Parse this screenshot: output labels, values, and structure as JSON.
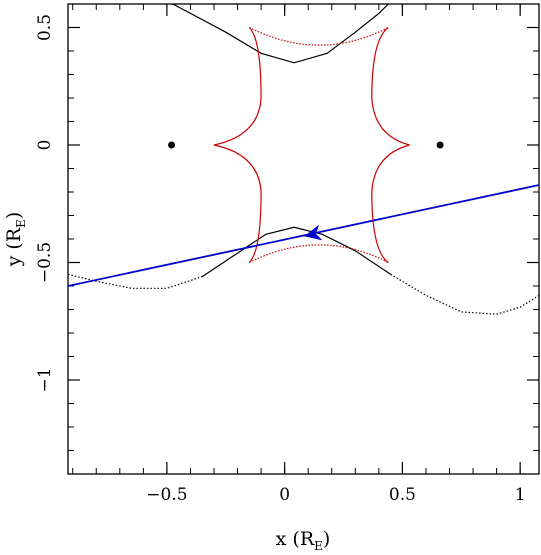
{
  "chart_data": {
    "type": "line",
    "title": "",
    "xlabel": {
      "main": "x (R",
      "sub": "E",
      "close": ")"
    },
    "ylabel": {
      "main": "y (R",
      "sub": "E",
      "close": ")"
    },
    "xlim": [
      -0.92,
      1.08
    ],
    "ylim": [
      -1.4,
      0.6
    ],
    "xticks_major": [
      -0.5,
      0,
      0.5,
      1
    ],
    "xtick_labels": [
      "−0.5",
      "0",
      "0.5",
      "1"
    ],
    "yticks_major": [
      0.5,
      0,
      -0.5,
      -1
    ],
    "ytick_labels": [
      "0.5",
      "0",
      "−0.5",
      "−1"
    ],
    "minor_tick_step": 0.1,
    "grid": false,
    "lenses": [
      {
        "x": -0.48,
        "y": 0.0
      },
      {
        "x": 0.66,
        "y": 0.0
      }
    ],
    "caustic": {
      "color": "#cc0000",
      "cusps": [
        {
          "x": -0.3,
          "y": 0.0
        },
        {
          "x": 0.53,
          "y": 0.0
        },
        {
          "x": 0.44,
          "y": 0.5
        },
        {
          "x": -0.15,
          "y": 0.5
        },
        {
          "x": -0.15,
          "y": -0.5
        },
        {
          "x": 0.44,
          "y": -0.5
        }
      ]
    },
    "critical_curve_upper": {
      "color": "#000000",
      "points": [
        [
          -0.7,
          0.7
        ],
        [
          -0.55,
          0.64
        ],
        [
          -0.4,
          0.56
        ],
        [
          -0.25,
          0.48
        ],
        [
          -0.1,
          0.39
        ],
        [
          0.04,
          0.35
        ],
        [
          0.18,
          0.39
        ],
        [
          0.3,
          0.48
        ],
        [
          0.4,
          0.56
        ],
        [
          0.48,
          0.64
        ]
      ]
    },
    "critical_curve_lower": {
      "color": "#000000",
      "points": [
        [
          -0.92,
          -0.55
        ],
        [
          -0.8,
          -0.58
        ],
        [
          -0.65,
          -0.61
        ],
        [
          -0.5,
          -0.61
        ],
        [
          -0.35,
          -0.56
        ],
        [
          -0.2,
          -0.46
        ],
        [
          -0.08,
          -0.38
        ],
        [
          0.04,
          -0.35
        ],
        [
          0.16,
          -0.38
        ],
        [
          0.3,
          -0.45
        ],
        [
          0.45,
          -0.55
        ],
        [
          0.6,
          -0.64
        ],
        [
          0.75,
          -0.71
        ],
        [
          0.9,
          -0.72
        ],
        [
          1.0,
          -0.69
        ],
        [
          1.08,
          -0.64
        ]
      ]
    },
    "source_trajectory": {
      "color": "#0000cc",
      "x": [
        -0.92,
        1.08
      ],
      "y": [
        -0.6,
        -0.17
      ],
      "arrow_at": {
        "x": 0.12,
        "y": -0.38
      }
    }
  }
}
